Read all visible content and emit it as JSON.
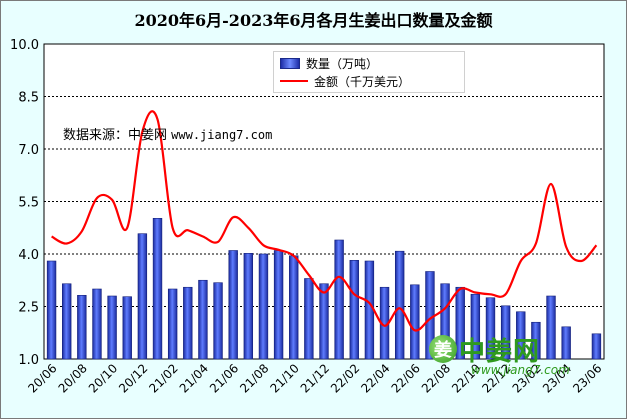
{
  "chart_data": {
    "type": "bar",
    "title": "2020年6月-2023年6月各月生姜出口数量及金额",
    "ylim": [
      1.0,
      10.0
    ],
    "yticks": [
      "1.0",
      "2.5",
      "4.0",
      "5.5",
      "7.0",
      "8.5",
      "10.0"
    ],
    "grid": true,
    "legend": "top-center",
    "x": [
      "20/06",
      "20/07",
      "20/08",
      "20/09",
      "20/10",
      "20/11",
      "20/12",
      "21/01",
      "21/02",
      "21/03",
      "21/04",
      "21/05",
      "21/06",
      "21/07",
      "21/08",
      "21/09",
      "21/10",
      "21/11",
      "21/12",
      "22/01",
      "22/02",
      "22/03",
      "22/04",
      "22/05",
      "22/06",
      "22/07",
      "22/08",
      "22/09",
      "22/10",
      "22/11",
      "22/12",
      "23/01",
      "23/02",
      "23/03",
      "23/04",
      "23/05",
      "23/06"
    ],
    "xtick_labels": [
      "20/06",
      "20/08",
      "20/10",
      "20/12",
      "21/02",
      "21/04",
      "21/06",
      "21/08",
      "21/10",
      "21/12",
      "22/02",
      "22/04",
      "22/06",
      "22/08",
      "22/10",
      "22/12",
      "23/02",
      "23/04",
      "23/06"
    ],
    "series": [
      {
        "name": "数量（万吨）",
        "type": "bar",
        "color": "#2a3fc9",
        "values": [
          3.8,
          3.15,
          2.82,
          3.0,
          2.8,
          2.78,
          4.58,
          5.02,
          3.0,
          3.05,
          3.25,
          3.18,
          4.1,
          4.02,
          4.0,
          4.1,
          3.95,
          3.3,
          3.15,
          4.4,
          3.82,
          3.8,
          3.05,
          4.08,
          3.12,
          3.5,
          3.15,
          3.05,
          2.85,
          2.75,
          2.52,
          2.35,
          2.05,
          2.8,
          1.92,
          0.95,
          1.72
        ]
      },
      {
        "name": "金额（千万美元）",
        "type": "line",
        "color": "#ff0000",
        "values": [
          4.5,
          4.3,
          4.65,
          5.6,
          5.55,
          4.75,
          7.5,
          7.85,
          4.75,
          4.68,
          4.5,
          4.35,
          5.05,
          4.75,
          4.25,
          4.12,
          3.95,
          3.4,
          2.9,
          3.35,
          2.85,
          2.6,
          1.95,
          2.45,
          1.82,
          2.15,
          2.45,
          3.0,
          2.9,
          2.85,
          2.85,
          3.8,
          4.3,
          6.0,
          4.2,
          3.8,
          4.25
        ]
      }
    ]
  },
  "annotation": {
    "source_prefix": "数据来源：中姜网",
    "source_url": "www.jiang7.com"
  },
  "watermark": {
    "mark": "姜",
    "text": "中姜网",
    "url": "www.jiang7.com",
    "color": "#2f9a1e"
  }
}
